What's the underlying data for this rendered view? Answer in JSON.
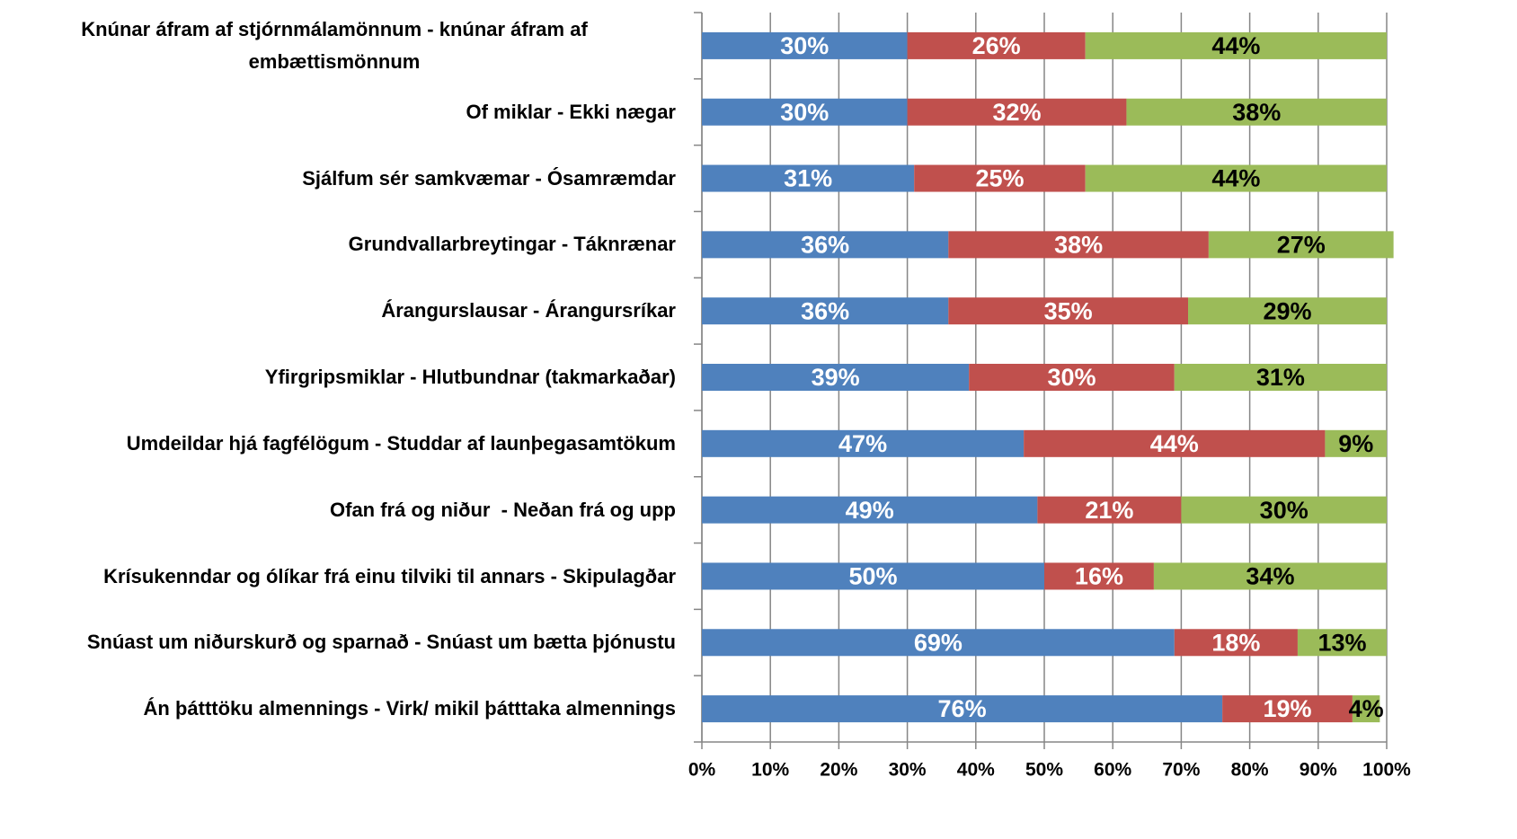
{
  "chart_data": {
    "type": "stacked-bar-horizontal",
    "categories": [
      "Knúnar áfram af stjórnmálamönnum - knúnar áfram af embættismönnum",
      "Of miklar - Ekki nægar",
      "Sjálfum sér samkvæmar - Ósamræmdar",
      "Grundvallarbreytingar - Táknrænar",
      "Árangurslausar - Árangursríkar",
      "Yfirgripsmiklar - Hlutbundnar (takmarkaðar)",
      "Umdeildar hjá fagfélögum - Studdar af launþegasamtökum",
      "Ofan frá og niður  - Neðan frá og upp",
      "Krísukenndar og ólíkar frá einu tilviki til annars - Skipulagðar",
      "Snúast um niðurskurð og sparnað - Snúast um bætta þjónustu",
      "Án þátttöku almennings - Virk/ mikil þátttaka almennings"
    ],
    "series": [
      {
        "color": "#4f81bd",
        "label_color": "#ffffff",
        "values": [
          30,
          30,
          31,
          36,
          36,
          39,
          47,
          49,
          50,
          69,
          76
        ],
        "value_labels": [
          "30%",
          "30%",
          "31%",
          "36%",
          "36%",
          "39%",
          "47%",
          "49%",
          "50%",
          "69%",
          "76%"
        ]
      },
      {
        "color": "#c0504d",
        "label_color": "#ffffff",
        "values": [
          26,
          32,
          25,
          38,
          35,
          30,
          44,
          21,
          16,
          18,
          19
        ],
        "value_labels": [
          "26%",
          "32%",
          "25%",
          "38%",
          "35%",
          "30%",
          "44%",
          "21%",
          "16%",
          "18%",
          "19%"
        ]
      },
      {
        "color": "#9bbb59",
        "label_color": "#000000",
        "values": [
          44,
          38,
          44,
          27,
          29,
          31,
          9,
          30,
          34,
          13,
          4
        ],
        "value_labels": [
          "44%",
          "38%",
          "44%",
          "27%",
          "29%",
          "31%",
          "9%",
          "30%",
          "34%",
          "13%",
          "4%"
        ]
      }
    ],
    "xlim": [
      0,
      100
    ],
    "xticks": [
      {
        "value": 0,
        "label": "0%"
      },
      {
        "value": 10,
        "label": "10%"
      },
      {
        "value": 20,
        "label": "20%"
      },
      {
        "value": 30,
        "label": "30%"
      },
      {
        "value": 40,
        "label": "40%"
      },
      {
        "value": 50,
        "label": "50%"
      },
      {
        "value": 60,
        "label": "60%"
      },
      {
        "value": 70,
        "label": "70%"
      },
      {
        "value": 80,
        "label": "80%"
      },
      {
        "value": 90,
        "label": "90%"
      },
      {
        "value": 100,
        "label": "100%"
      }
    ],
    "grid": true
  }
}
